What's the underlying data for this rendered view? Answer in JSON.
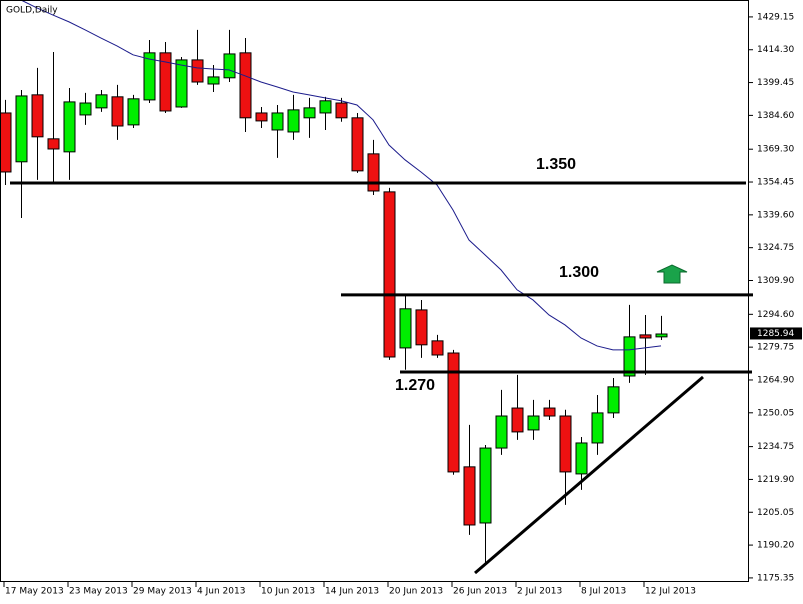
{
  "chart_data": {
    "type": "candlestick",
    "title": "GOLD,Daily",
    "categories": [
      "17 May 2013",
      null,
      null,
      null,
      "23 May 2013",
      null,
      null,
      null,
      "29 May 2013",
      null,
      null,
      null,
      "4 Jun 2013",
      null,
      null,
      null,
      "10 Jun 2013",
      null,
      null,
      null,
      "14 Jun 2013",
      null,
      null,
      null,
      "20 Jun 2013",
      null,
      null,
      null,
      "26 Jun 2013",
      null,
      null,
      null,
      "2 Jul 2013",
      null,
      null,
      null,
      "8 Jul 2013",
      null,
      null,
      null,
      "12 Jul 2013",
      null
    ],
    "open": [
      1385.7,
      1363.6,
      1393.9,
      1374.0,
      1368.1,
      1384.8,
      1388.0,
      1393.0,
      1380.3,
      1391.6,
      1412.9,
      1388.4,
      1409.7,
      1398.8,
      1401.6,
      1412.9,
      1385.7,
      1378.0,
      1377.1,
      1383.5,
      1385.7,
      1390.2,
      1383.5,
      1367.2,
      1350.0,
      1279.4,
      1296.6,
      1282.6,
      1277.1,
      1225.6,
      1200.2,
      1234.1,
      1252.2,
      1242.3,
      1252.2,
      1248.6,
      1222.4,
      1236.4,
      1250.0,
      1266.7,
      1285.3,
      1284.4
    ],
    "high": [
      1391.6,
      1396.1,
      1406.1,
      1413.3,
      1397.0,
      1394.8,
      1396.1,
      1398.4,
      1393.9,
      1418.7,
      1417.8,
      1411.0,
      1423.3,
      1407.4,
      1423.3,
      1419.6,
      1388.4,
      1389.3,
      1393.9,
      1392.5,
      1393.0,
      1392.5,
      1385.7,
      1373.5,
      1351.8,
      1303.4,
      1301.1,
      1285.3,
      1278.5,
      1244.6,
      1235.5,
      1260.4,
      1267.2,
      1255.9,
      1255.9,
      1251.4,
      1239.1,
      1258.1,
      1265.8,
      1298.9,
      1294.3,
      1293.9
    ],
    "low": [
      1353.1,
      1338.2,
      1355.4,
      1354.0,
      1355.4,
      1380.3,
      1386.2,
      1373.5,
      1378.9,
      1390.2,
      1385.7,
      1388.0,
      1398.4,
      1395.2,
      1399.7,
      1377.1,
      1378.9,
      1365.4,
      1373.5,
      1374.4,
      1378.0,
      1381.7,
      1358.6,
      1348.6,
      1274.0,
      1269.5,
      1274.9,
      1274.9,
      1222.0,
      1194.8,
      1181.2,
      1231.0,
      1237.8,
      1237.8,
      1246.8,
      1208.4,
      1215.2,
      1231.0,
      1247.7,
      1263.6,
      1267.2,
      1283.0
    ],
    "close": [
      1359.0,
      1393.4,
      1374.9,
      1369.4,
      1390.7,
      1390.2,
      1393.9,
      1379.8,
      1392.1,
      1412.9,
      1386.6,
      1409.7,
      1399.7,
      1402.0,
      1412.4,
      1383.5,
      1382.1,
      1385.7,
      1387.1,
      1388.0,
      1391.2,
      1383.5,
      1359.5,
      1350.4,
      1275.3,
      1297.1,
      1280.8,
      1276.2,
      1223.3,
      1199.3,
      1234.1,
      1248.6,
      1241.4,
      1248.6,
      1248.6,
      1223.3,
      1236.4,
      1250.0,
      1261.8,
      1284.4,
      1283.9,
      1285.7
    ],
    "up_color": "#00ee00",
    "down_color": "#ee1111",
    "moving_average": {
      "color": "#1c1c8c",
      "values": [
        1438.2,
        1436.8,
        1433.2,
        1430.0,
        1426.9,
        1423.3,
        1419.6,
        1416.0,
        1412.0,
        1410.1,
        1408.8,
        1407.4,
        1406.1,
        1405.6,
        1405.2,
        1402.5,
        1399.7,
        1397.5,
        1395.2,
        1393.9,
        1392.5,
        1391.2,
        1389.3,
        1382.6,
        1371.2,
        1364.5,
        1359.0,
        1353.1,
        1341.8,
        1328.2,
        1321.5,
        1314.7,
        1305.7,
        1301.1,
        1294.3,
        1289.8,
        1283.9,
        1280.3,
        1278.5,
        1278.5,
        1279.4,
        1280.3
      ]
    },
    "ylim": [
      1173.5,
      1436.8
    ],
    "yticks": [
      1429.15,
      {
        "value": 1414.3,
        "label": "1414.30"
      },
      1399.45,
      {
        "value": 1384.6,
        "label": "1384.60"
      },
      {
        "value": 1369.3,
        "label": "1369.30"
      },
      1354.45,
      {
        "value": 1339.6,
        "label": "1339.60"
      },
      1324.75,
      {
        "value": 1309.9,
        "label": "1309.90"
      },
      {
        "value": 1294.6,
        "label": "1294.60"
      },
      1279.75,
      {
        "value": 1264.9,
        "label": "1264.90"
      },
      1250.05,
      1234.75,
      {
        "value": 1219.9,
        "label": "1219.90"
      },
      1205.05,
      {
        "value": 1190.2,
        "label": "1190.20"
      },
      1175.35
    ],
    "last_price": 1285.94,
    "levels": [
      {
        "label": "1.350",
        "value": 1354.0
      },
      {
        "label": "1.300",
        "value": 1303.4
      },
      {
        "label": "1.270",
        "value": 1268.5
      }
    ]
  }
}
